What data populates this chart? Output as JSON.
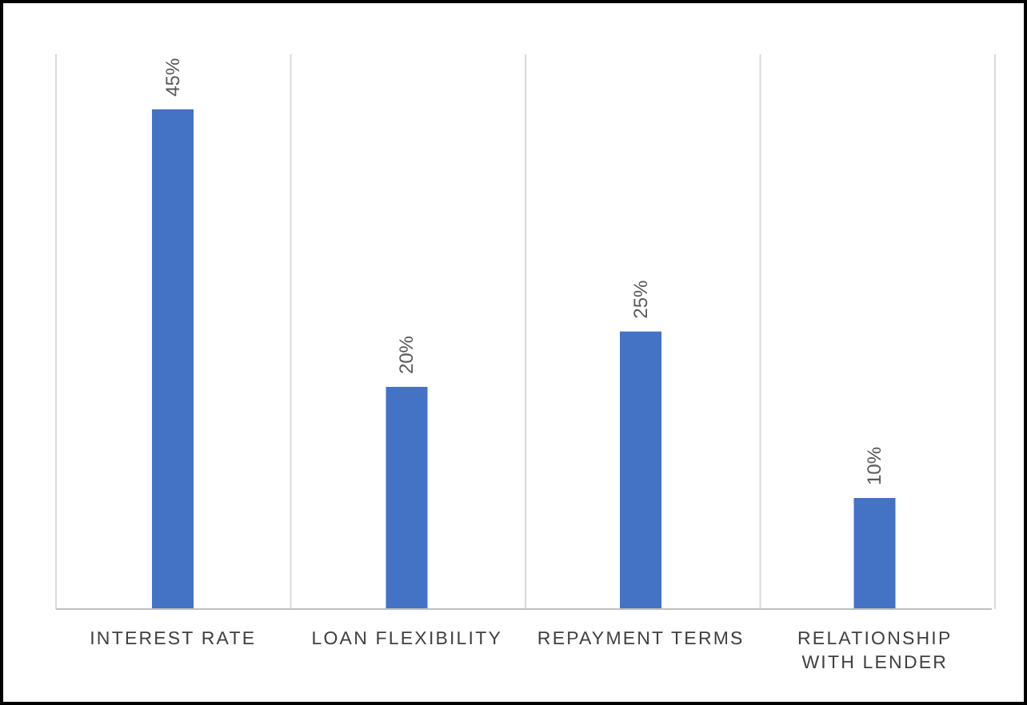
{
  "chart_data": {
    "type": "bar",
    "categories": [
      "INTEREST RATE",
      "LOAN FLEXIBILITY",
      "REPAYMENT TERMS",
      "RELATIONSHIP WITH LENDER"
    ],
    "values": [
      45,
      20,
      25,
      10
    ],
    "color": "#4472c4",
    "value_labels": [
      "45%",
      "20%",
      "25%",
      "10%"
    ],
    "grid": "x"
  }
}
